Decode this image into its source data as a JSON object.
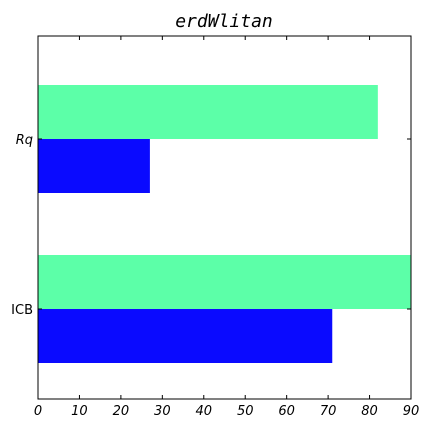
{
  "chart_data": {
    "type": "bar",
    "orientation": "horizontal",
    "title": "erdWlitan",
    "xlabel": "",
    "ylabel": "",
    "categories": [
      "ICB",
      "Rq"
    ],
    "xlim": [
      0,
      90
    ],
    "xticks": [
      0,
      10,
      20,
      30,
      40,
      50,
      60,
      70,
      80,
      90
    ],
    "grid": false,
    "series": [
      {
        "color": "#0a0aff",
        "values": [
          71,
          27
        ]
      },
      {
        "color": "#5cffa8",
        "values": [
          90,
          82
        ]
      }
    ]
  }
}
